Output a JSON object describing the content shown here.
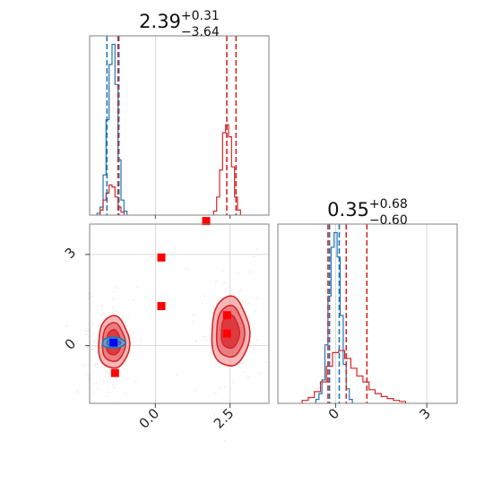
{
  "chart_data": [
    {
      "type": "histogram",
      "panel": "marginal-x",
      "title": {
        "median": "2.39",
        "plus": "+0.31",
        "minus": "−3.64"
      },
      "xlim": [
        -2.2,
        3.8
      ],
      "grid": true,
      "series": [
        {
          "name": "",
          "color": "#1f77b4",
          "bins": [
            {
              "x": -1.9,
              "y": 2
            },
            {
              "x": -1.8,
              "y": 8
            },
            {
              "x": -1.7,
              "y": 40
            },
            {
              "x": -1.6,
              "y": 95
            },
            {
              "x": -1.5,
              "y": 150
            },
            {
              "x": -1.4,
              "y": 170
            },
            {
              "x": -1.3,
              "y": 130
            },
            {
              "x": -1.2,
              "y": 55
            },
            {
              "x": -1.1,
              "y": 15
            },
            {
              "x": -1.0,
              "y": 4
            }
          ],
          "quantile_lines": [
            -1.62,
            -1.22
          ]
        },
        {
          "name": "",
          "color": "#d62728",
          "bins": [
            {
              "x": -1.8,
              "y": 5
            },
            {
              "x": -1.7,
              "y": 15
            },
            {
              "x": -1.6,
              "y": 22
            },
            {
              "x": -1.5,
              "y": 30
            },
            {
              "x": -1.4,
              "y": 28
            },
            {
              "x": -1.3,
              "y": 18
            },
            {
              "x": -1.2,
              "y": 8
            },
            {
              "x": -1.1,
              "y": 3
            },
            {
              "x": 2.0,
              "y": 4
            },
            {
              "x": 2.1,
              "y": 18
            },
            {
              "x": 2.2,
              "y": 45
            },
            {
              "x": 2.3,
              "y": 82
            },
            {
              "x": 2.4,
              "y": 90
            },
            {
              "x": 2.5,
              "y": 78
            },
            {
              "x": 2.6,
              "y": 48
            },
            {
              "x": 2.7,
              "y": 18
            },
            {
              "x": 2.8,
              "y": 5
            }
          ],
          "quantile_lines": [
            -1.25,
            2.39,
            2.7
          ]
        }
      ]
    },
    {
      "type": "contour",
      "panel": "joint",
      "xlim": [
        -2.2,
        3.8
      ],
      "ylim": [
        -1.9,
        4.0
      ],
      "xticks": [
        "0.0",
        "2.5"
      ],
      "yticks": [
        "0",
        "3"
      ],
      "grid": true,
      "truth_markers": {
        "color": "#ff0000",
        "points": [
          {
            "x": -1.35,
            "y": -0.9
          },
          {
            "x": 0.2,
            "y": 2.9
          },
          {
            "x": 0.2,
            "y": 1.3
          },
          {
            "x": 1.7,
            "y": 4.1
          },
          {
            "x": 2.4,
            "y": 1.0
          },
          {
            "x": 2.4,
            "y": 0.4
          }
        ]
      },
      "blue_marker": {
        "x": -1.4,
        "y": 0.1,
        "color": "#0000ff"
      },
      "clusters": [
        {
          "name": "",
          "color": "#d62728",
          "center": {
            "x": -1.4,
            "y": 0.1
          },
          "sx": 0.45,
          "sy": 0.75
        },
        {
          "name": "",
          "color": "#d62728",
          "center": {
            "x": 2.5,
            "y": 0.45
          },
          "sx": 0.55,
          "sy": 1.0
        },
        {
          "name": "",
          "color": "#1f77b4",
          "center": {
            "x": -1.4,
            "y": 0.1
          },
          "sx": 0.38,
          "sy": 0.18
        }
      ]
    },
    {
      "type": "histogram",
      "panel": "marginal-y",
      "title": {
        "median": "0.35",
        "plus": "+0.68",
        "minus": "−0.60"
      },
      "xlim": [
        -1.9,
        4.0
      ],
      "xticks": [
        "0",
        "3"
      ],
      "grid": true,
      "series": [
        {
          "name": "",
          "color": "#1f77b4",
          "bins": [
            {
              "x": -0.6,
              "y": 4
            },
            {
              "x": -0.5,
              "y": 10
            },
            {
              "x": -0.4,
              "y": 24
            },
            {
              "x": -0.3,
              "y": 60
            },
            {
              "x": -0.2,
              "y": 110
            },
            {
              "x": -0.1,
              "y": 160
            },
            {
              "x": 0.0,
              "y": 175
            },
            {
              "x": 0.1,
              "y": 150
            },
            {
              "x": 0.2,
              "y": 90
            },
            {
              "x": 0.3,
              "y": 40
            },
            {
              "x": 0.4,
              "y": 15
            },
            {
              "x": 0.5,
              "y": 4
            }
          ],
          "quantile_lines": [
            -0.2,
            0.12
          ]
        },
        {
          "name": "",
          "color": "#d62728",
          "bins": [
            {
              "x": -1.0,
              "y": 3
            },
            {
              "x": -0.8,
              "y": 6
            },
            {
              "x": -0.6,
              "y": 12
            },
            {
              "x": -0.4,
              "y": 22
            },
            {
              "x": -0.2,
              "y": 38
            },
            {
              "x": 0.0,
              "y": 52
            },
            {
              "x": 0.2,
              "y": 54
            },
            {
              "x": 0.4,
              "y": 46
            },
            {
              "x": 0.6,
              "y": 36
            },
            {
              "x": 0.8,
              "y": 28
            },
            {
              "x": 1.0,
              "y": 22
            },
            {
              "x": 1.2,
              "y": 14
            },
            {
              "x": 1.4,
              "y": 10
            },
            {
              "x": 1.6,
              "y": 7
            },
            {
              "x": 1.8,
              "y": 5
            },
            {
              "x": 2.0,
              "y": 3
            },
            {
              "x": 2.2,
              "y": 2
            }
          ],
          "quantile_lines": [
            -0.25,
            0.35,
            1.03
          ]
        }
      ]
    }
  ]
}
